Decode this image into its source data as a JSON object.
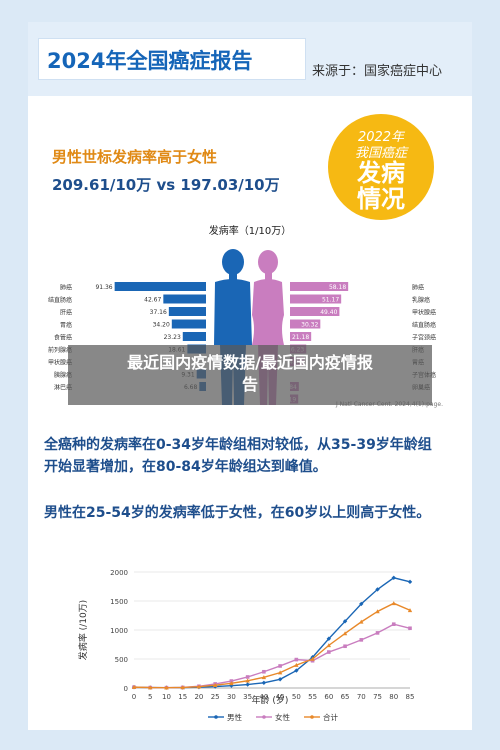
{
  "report": {
    "title": "2024年全国癌症报告",
    "source": "来源于：国家癌症中心",
    "badge_line1": "2022年",
    "badge_line2": "我国癌症",
    "badge_line3": "发病",
    "badge_line4": "情况",
    "headline": "男性世标发病率高于女性",
    "subheadline": "209.61/10万 vs 197.03/10万",
    "citation": "J Natl Cancer Cent. 2024,4(1):page.",
    "text1_line1": "全癌种的发病率在0-34岁年龄组相对较低，从35-39岁年龄组",
    "text1_line2": "开始显著增加，在80-84岁年龄组达到峰值。",
    "text2": "男性在25-54岁的发病率低于女性，在60岁以上则高于女性。"
  },
  "overlay": {
    "line1": "最近国内疫情数据/最近国内疫情报",
    "line2": "告"
  },
  "colors": {
    "male": "#1a66b5",
    "female": "#c97dbf",
    "total": "#e8892a",
    "orange": "#e08a16",
    "navy": "#1e4e8c",
    "badge": "#f6b913"
  },
  "chart_data": [
    {
      "type": "bar",
      "title": "发病率（1/10万）",
      "series": [
        {
          "name": "男性",
          "categories": [
            "肺癌",
            "结直肠癌",
            "肝癌",
            "胃癌",
            "食管癌",
            "前列腺癌",
            "甲状腺癌",
            "胰腺癌",
            "淋巴癌"
          ],
          "values": [
            91.36,
            42.67,
            37.16,
            34.2,
            23.23,
            18.61,
            null,
            9.31,
            6.68
          ],
          "value_labels": [
            "91.36",
            "42.67",
            "37.16",
            "34.20",
            "23.23",
            "18.61",
            "",
            "9.31",
            "6.68"
          ]
        },
        {
          "name": "女性",
          "categories": [
            "肺癌",
            "乳腺癌",
            "甲状腺癌",
            "结直肠癌",
            "子宫颈癌",
            "肝癌",
            "胃癌",
            "子宫体癌",
            "卵巢癌",
            ""
          ],
          "values": [
            58.18,
            51.17,
            49.4,
            30.32,
            21.18,
            16.23,
            14.44,
            null,
            8.84,
            8.19
          ],
          "value_labels": [
            "58.18",
            "51.17",
            "49.40",
            "30.32",
            "21.18",
            "16.23",
            "14.44",
            "",
            "8.84",
            "8.19"
          ]
        }
      ],
      "xlim": [
        0,
        100
      ]
    },
    {
      "type": "line",
      "title": "",
      "xlabel": "年龄 (岁)",
      "ylabel": "发病率 (/10万)",
      "x": [
        0,
        5,
        10,
        15,
        20,
        25,
        30,
        35,
        40,
        45,
        50,
        55,
        60,
        65,
        70,
        75,
        80,
        85
      ],
      "x_ticks": [
        "0",
        "5",
        "10",
        "15",
        "20",
        "25",
        "30",
        "35",
        "40",
        "45",
        "50",
        "55",
        "60",
        "65",
        "70",
        "75",
        "80",
        "85"
      ],
      "y_ticks": [
        "0",
        "500",
        "1000",
        "1500",
        "2000"
      ],
      "ylim": [
        0,
        2000
      ],
      "xlim": [
        0,
        85
      ],
      "grid": true,
      "legend_position": "bottom",
      "series": [
        {
          "name": "男性",
          "values": [
            15,
            8,
            6,
            8,
            15,
            25,
            40,
            60,
            90,
            150,
            300,
            530,
            850,
            1150,
            1450,
            1700,
            1900,
            1830
          ]
        },
        {
          "name": "女性",
          "values": [
            14,
            7,
            6,
            10,
            30,
            70,
            120,
            190,
            280,
            380,
            490,
            470,
            620,
            720,
            830,
            950,
            1100,
            1030
          ]
        },
        {
          "name": "合计",
          "values": [
            15,
            8,
            6,
            9,
            22,
            48,
            80,
            125,
            185,
            265,
            395,
            500,
            735,
            940,
            1140,
            1320,
            1460,
            1340
          ]
        }
      ]
    }
  ]
}
